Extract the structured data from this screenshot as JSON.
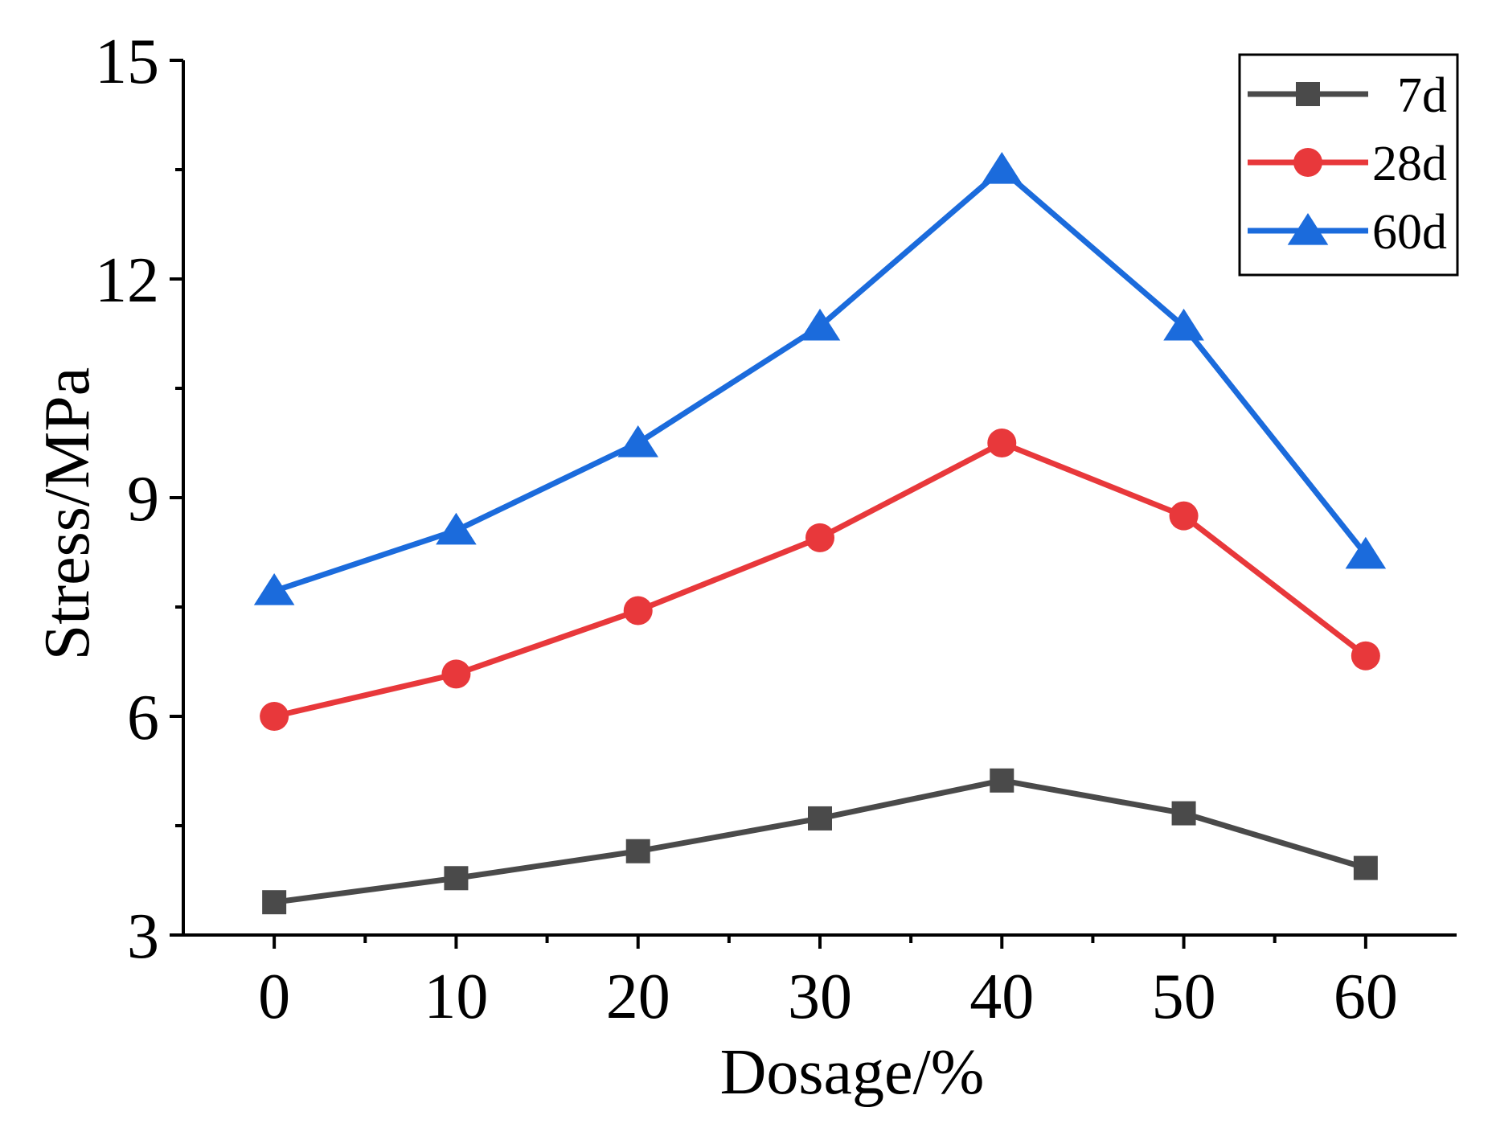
{
  "chart_data": {
    "type": "line",
    "title": "",
    "xlabel": "Dosage/%",
    "ylabel": "Stress/MPa",
    "xlim": [
      -5,
      65
    ],
    "ylim": [
      3,
      15
    ],
    "x_ticks": [
      0,
      10,
      20,
      30,
      40,
      50,
      60
    ],
    "y_ticks": [
      3,
      6,
      9,
      12,
      15
    ],
    "x_minor_ticks": [
      5,
      15,
      25,
      35,
      45,
      55
    ],
    "y_minor_ticks": [
      4.5,
      7.5,
      10.5,
      13.5
    ],
    "grid": false,
    "legend_position": "top-right",
    "x": [
      0,
      10,
      20,
      30,
      40,
      50,
      60
    ],
    "series": [
      {
        "name": "7d",
        "values": [
          3.45,
          3.78,
          4.15,
          4.6,
          5.12,
          4.67,
          3.92
        ],
        "color": "#4a4a4a",
        "marker": "square"
      },
      {
        "name": "28d",
        "values": [
          6.0,
          6.58,
          7.45,
          8.45,
          9.75,
          8.75,
          6.83
        ],
        "color": "#e8383b",
        "marker": "circle"
      },
      {
        "name": "60d",
        "values": [
          7.72,
          8.55,
          9.75,
          11.35,
          13.5,
          11.35,
          8.22
        ],
        "color": "#1b6bdc",
        "marker": "triangle"
      }
    ]
  }
}
